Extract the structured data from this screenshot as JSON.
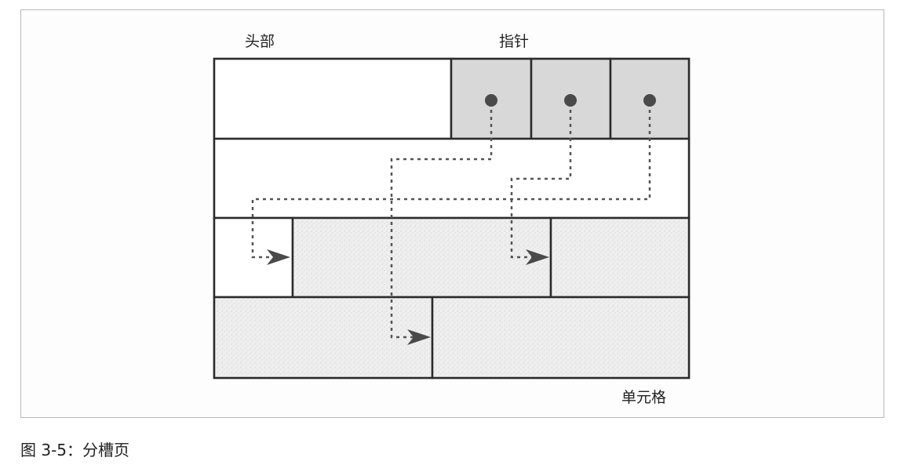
{
  "labels": {
    "header": "头部",
    "pointer": "指针",
    "cell": "单元格"
  },
  "caption": "图 3-5：分槽页",
  "colors": {
    "border": "#2b2b2b",
    "header_fill": "#d9d9d9",
    "cell_fill": "#ececec",
    "dash": "#555555"
  }
}
